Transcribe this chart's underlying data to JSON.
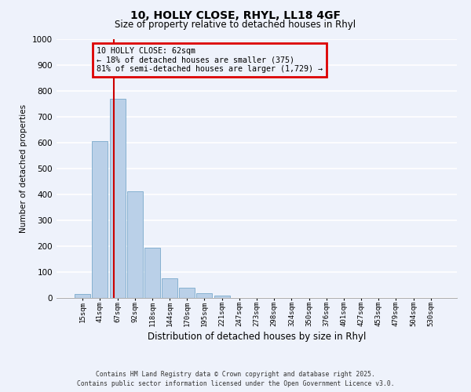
{
  "title": "10, HOLLY CLOSE, RHYL, LL18 4GF",
  "subtitle": "Size of property relative to detached houses in Rhyl",
  "xlabel": "Distribution of detached houses by size in Rhyl",
  "ylabel": "Number of detached properties",
  "bar_labels": [
    "15sqm",
    "41sqm",
    "67sqm",
    "92sqm",
    "118sqm",
    "144sqm",
    "170sqm",
    "195sqm",
    "221sqm",
    "247sqm",
    "273sqm",
    "298sqm",
    "324sqm",
    "350sqm",
    "376sqm",
    "401sqm",
    "427sqm",
    "453sqm",
    "479sqm",
    "504sqm",
    "530sqm"
  ],
  "bar_values": [
    15,
    605,
    770,
    413,
    193,
    75,
    40,
    18,
    10,
    0,
    0,
    0,
    0,
    0,
    0,
    0,
    0,
    0,
    0,
    0,
    0
  ],
  "bar_color": "#bad0e8",
  "bar_edge_color": "#7aaacb",
  "ylim": [
    0,
    1000
  ],
  "yticks": [
    0,
    100,
    200,
    300,
    400,
    500,
    600,
    700,
    800,
    900,
    1000
  ],
  "annotation_title": "10 HOLLY CLOSE: 62sqm",
  "annotation_line1": "← 18% of detached houses are smaller (375)",
  "annotation_line2": "81% of semi-detached houses are larger (1,729) →",
  "annotation_box_color": "#dd0000",
  "vline_color": "#cc0000",
  "footer_line1": "Contains HM Land Registry data © Crown copyright and database right 2025.",
  "footer_line2": "Contains public sector information licensed under the Open Government Licence v3.0.",
  "background_color": "#eef2fb",
  "grid_color": "#ffffff"
}
